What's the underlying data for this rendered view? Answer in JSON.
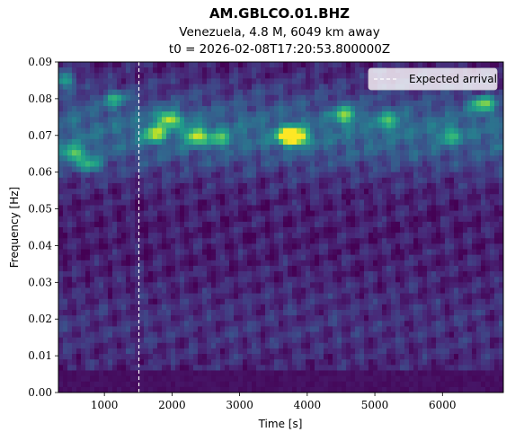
{
  "chart_data": {
    "type": "heatmap",
    "title": "AM.GBLCO.01.BHZ",
    "subtitle_lines": [
      "Venezuela, 4.8 M, 6049 km away",
      "t0 = 2026-02-08T17:20:53.800000Z"
    ],
    "xlabel": "Time [s]",
    "ylabel": "Frequency [Hz]",
    "xlim": [
      320,
      6900
    ],
    "ylim": [
      0.0,
      0.09
    ],
    "x_ticks": [
      1000,
      2000,
      3000,
      4000,
      5000,
      6000
    ],
    "x_tick_labels": [
      "1000",
      "2000",
      "3000",
      "4000",
      "5000",
      "6000"
    ],
    "y_ticks": [
      0.0,
      0.01,
      0.02,
      0.03,
      0.04,
      0.05,
      0.06,
      0.07,
      0.08,
      0.09
    ],
    "y_tick_labels": [
      "0.00",
      "0.01",
      "0.02",
      "0.03",
      "0.04",
      "0.05",
      "0.06",
      "0.07",
      "0.08",
      "0.09"
    ],
    "colormap": "viridis",
    "expected_arrival": 1510,
    "legend": {
      "label": "Expected arrival",
      "placement": "top-right"
    },
    "grid": false,
    "hotspots": [
      {
        "t": 3850,
        "f": 0.0695,
        "level": 1.0
      },
      {
        "t": 3700,
        "f": 0.07,
        "level": 0.9
      },
      {
        "t": 1950,
        "f": 0.0745,
        "level": 0.85
      },
      {
        "t": 2350,
        "f": 0.07,
        "level": 0.8
      },
      {
        "t": 1750,
        "f": 0.0705,
        "level": 0.75
      },
      {
        "t": 550,
        "f": 0.065,
        "level": 0.7
      },
      {
        "t": 6600,
        "f": 0.0785,
        "level": 0.75
      },
      {
        "t": 4550,
        "f": 0.0755,
        "level": 0.7
      },
      {
        "t": 400,
        "f": 0.085,
        "level": 0.6
      },
      {
        "t": 800,
        "f": 0.062,
        "level": 0.55
      },
      {
        "t": 1150,
        "f": 0.08,
        "level": 0.5
      },
      {
        "t": 2700,
        "f": 0.069,
        "level": 0.5
      },
      {
        "t": 5200,
        "f": 0.074,
        "level": 0.5
      },
      {
        "t": 6100,
        "f": 0.07,
        "level": 0.45
      }
    ]
  }
}
